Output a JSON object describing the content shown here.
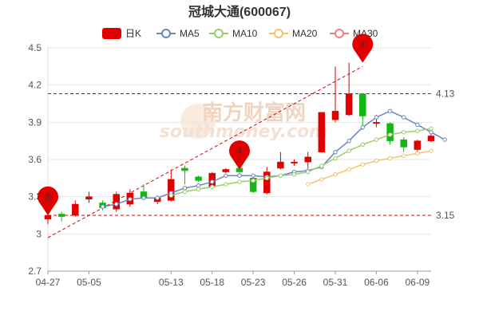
{
  "chart_data": {
    "type": "candlestick",
    "title": "冠城大通(600067)",
    "legend": [
      {
        "label": "日K",
        "color": "#e10000",
        "icon": "filled-rect"
      },
      {
        "label": "MA5",
        "color": "#6a84c4",
        "icon": "line-circle"
      },
      {
        "label": "MA10",
        "color": "#9acd6a",
        "icon": "line-circle"
      },
      {
        "label": "MA20",
        "color": "#f5c26b",
        "icon": "line-circle"
      },
      {
        "label": "MA30",
        "color": "#f08080",
        "icon": "line-circle"
      }
    ],
    "ylim": [
      2.7,
      4.5
    ],
    "yticks": [
      "2.7",
      "3",
      "3.3",
      "3.6",
      "3.9",
      "4.2",
      "4.5"
    ],
    "ytick_values": [
      2.7,
      3.0,
      3.3,
      3.6,
      3.9,
      4.2,
      4.5
    ],
    "xtick_labels": [
      "04-27",
      "05-05",
      "05-13",
      "05-18",
      "05-23",
      "05-26",
      "05-31",
      "06-06",
      "06-09"
    ],
    "xtick_index": [
      0,
      3,
      9,
      12,
      15,
      18,
      21,
      24,
      27
    ],
    "candles": [
      {
        "o": 3.12,
        "c": 3.15,
        "h": 3.2,
        "l": 3.08
      },
      {
        "o": 3.16,
        "c": 3.14,
        "h": 3.18,
        "l": 3.1
      },
      {
        "o": 3.15,
        "c": 3.24,
        "h": 3.27,
        "l": 3.14
      },
      {
        "o": 3.28,
        "c": 3.3,
        "h": 3.34,
        "l": 3.25
      },
      {
        "o": 3.25,
        "c": 3.21,
        "h": 3.27,
        "l": 3.19
      },
      {
        "o": 3.2,
        "c": 3.32,
        "h": 3.34,
        "l": 3.18
      },
      {
        "o": 3.24,
        "c": 3.33,
        "h": 3.36,
        "l": 3.22
      },
      {
        "o": 3.34,
        "c": 3.29,
        "h": 3.4,
        "l": 3.28
      },
      {
        "o": 3.26,
        "c": 3.29,
        "h": 3.31,
        "l": 3.24
      },
      {
        "o": 3.27,
        "c": 3.44,
        "h": 3.52,
        "l": 3.26
      },
      {
        "o": 3.53,
        "c": 3.51,
        "h": 3.55,
        "l": 3.4
      },
      {
        "o": 3.46,
        "c": 3.43,
        "h": 3.47,
        "l": 3.42
      },
      {
        "o": 3.38,
        "c": 3.49,
        "h": 3.5,
        "l": 3.36
      },
      {
        "o": 3.5,
        "c": 3.52,
        "h": 3.53,
        "l": 3.49
      },
      {
        "o": 3.53,
        "c": 3.5,
        "h": 3.54,
        "l": 3.46
      },
      {
        "o": 3.45,
        "c": 3.34,
        "h": 3.47,
        "l": 3.33
      },
      {
        "o": 3.33,
        "c": 3.5,
        "h": 3.54,
        "l": 3.32
      },
      {
        "o": 3.53,
        "c": 3.58,
        "h": 3.66,
        "l": 3.52
      },
      {
        "o": 3.58,
        "c": 3.58,
        "h": 3.6,
        "l": 3.55
      },
      {
        "o": 3.58,
        "c": 3.62,
        "h": 3.66,
        "l": 3.53
      },
      {
        "o": 3.66,
        "c": 3.98,
        "h": 3.98,
        "l": 3.66
      },
      {
        "o": 3.92,
        "c": 3.99,
        "h": 4.35,
        "l": 3.9
      },
      {
        "o": 3.96,
        "c": 4.13,
        "h": 4.38,
        "l": 3.95
      },
      {
        "o": 4.13,
        "c": 3.95,
        "h": 4.13,
        "l": 3.84
      },
      {
        "o": 3.9,
        "c": 3.9,
        "h": 3.96,
        "l": 3.86
      },
      {
        "o": 3.89,
        "c": 3.75,
        "h": 3.9,
        "l": 3.72
      },
      {
        "o": 3.76,
        "c": 3.7,
        "h": 3.78,
        "l": 3.66
      },
      {
        "o": 3.68,
        "c": 3.75,
        "h": 3.76,
        "l": 3.66
      },
      {
        "o": 3.75,
        "c": 3.79,
        "h": 3.86,
        "l": 3.74
      }
    ],
    "series": [
      {
        "name": "MA5",
        "color": "#6a84c4",
        "start": 4,
        "values": [
          3.22,
          3.24,
          3.28,
          3.29,
          3.29,
          3.33,
          3.37,
          3.39,
          3.42,
          3.47,
          3.47,
          3.47,
          3.46,
          3.47,
          3.5,
          3.51,
          3.54,
          3.66,
          3.75,
          3.86,
          3.94,
          3.99,
          3.94,
          3.88,
          3.82,
          3.76
        ]
      },
      {
        "name": "MA10",
        "color": "#9acd6a",
        "start": 9,
        "values": [
          3.31,
          3.34,
          3.36,
          3.38,
          3.4,
          3.42,
          3.43,
          3.45,
          3.47,
          3.48,
          3.5,
          3.55,
          3.61,
          3.67,
          3.72,
          3.76,
          3.8,
          3.82,
          3.83,
          3.85
        ]
      },
      {
        "name": "MA20",
        "color": "#f5c26b",
        "start": 19,
        "values": [
          3.4,
          3.44,
          3.48,
          3.52,
          3.56,
          3.59,
          3.61,
          3.63,
          3.65,
          3.67
        ]
      }
    ],
    "ref_lines": [
      {
        "value": 4.13,
        "label": "4.13"
      },
      {
        "value": 3.15,
        "label": "3.15"
      }
    ],
    "markers": [
      {
        "index": 0,
        "value": 3.15,
        "label": "3"
      },
      {
        "index": 14,
        "value": 3.52,
        "label": "4"
      },
      {
        "index": 23,
        "value": 4.38,
        "label": "4"
      }
    ],
    "trend_line": {
      "from_index": 0,
      "from_value": 2.97,
      "to_index": 23,
      "to_value": 4.35
    },
    "colors": {
      "up": "#e10000",
      "down": "#14b714",
      "grid": "#e6e6e6",
      "ref": "#e10000",
      "marker": "#e10000"
    },
    "watermark": {
      "text": "南方财富网",
      "subtext": "southmoney.com"
    }
  }
}
